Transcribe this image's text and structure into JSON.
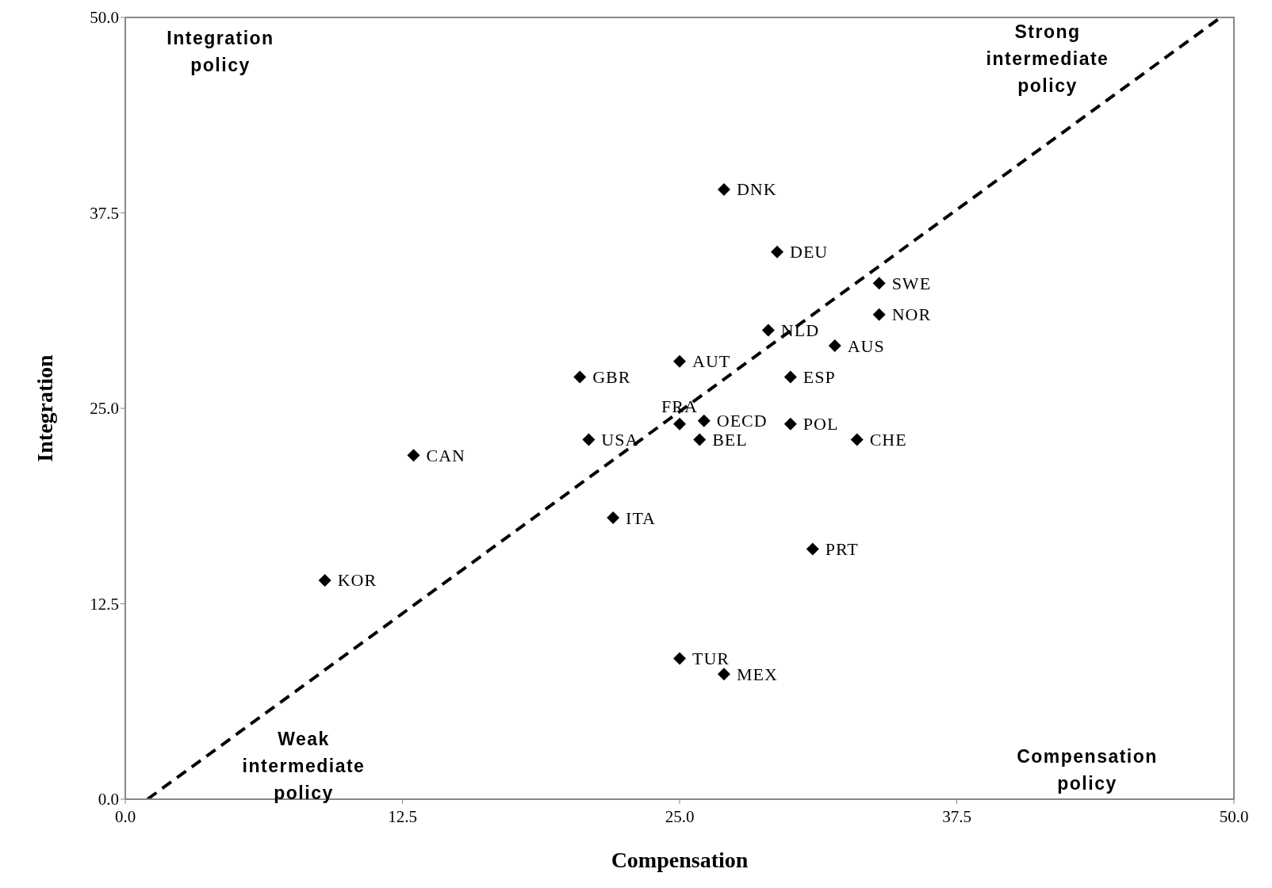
{
  "chart_data": {
    "type": "scatter",
    "xlabel": "Compensation",
    "ylabel": "Integration",
    "xlim": [
      0,
      50
    ],
    "ylim": [
      0,
      50
    ],
    "xticks": [
      {
        "value": 0,
        "label": "0.0"
      },
      {
        "value": 12.5,
        "label": "12.5"
      },
      {
        "value": 25,
        "label": "25.0"
      },
      {
        "value": 37.5,
        "label": "37.5"
      },
      {
        "value": 50,
        "label": "50.0"
      }
    ],
    "yticks": [
      {
        "value": 0,
        "label": "0.0"
      },
      {
        "value": 12.5,
        "label": "12.5"
      },
      {
        "value": 25,
        "label": "25.0"
      },
      {
        "value": 37.5,
        "label": "37.5"
      },
      {
        "value": 50,
        "label": "50.0"
      }
    ],
    "grid": false,
    "legend": false,
    "series": [
      {
        "marker": "diamond",
        "color": "#000000",
        "x": [
          27,
          29.4,
          34,
          34,
          29,
          32,
          25,
          20.5,
          30,
          26.1,
          25,
          20.9,
          25.9,
          30,
          33,
          13,
          22,
          31,
          9,
          25,
          27
        ],
        "values": [
          39,
          35,
          33,
          31,
          30,
          29,
          28,
          27,
          27,
          24.2,
          24,
          23,
          23,
          24,
          23,
          22,
          18,
          16,
          14,
          9,
          8
        ],
        "value_labels": [
          "DNK",
          "DEU",
          "SWE",
          "NOR",
          "NLD",
          "AUS",
          "AUT",
          "GBR",
          "ESP",
          "OECD",
          "FRA",
          "USA",
          "BEL",
          "POL",
          "CHE",
          "CAN",
          "ITA",
          "PRT",
          "KOR",
          "TUR",
          "MEX"
        ]
      },
      {
        "type": "line",
        "color": "#000000",
        "line_style": "dashed",
        "marker": "none",
        "x": [
          1,
          49.4
        ],
        "values": [
          0,
          50
        ]
      }
    ],
    "annotations": [
      "Integration policy",
      "Strong intermediate policy",
      "Weak intermediate policy",
      "Compensation policy"
    ]
  }
}
